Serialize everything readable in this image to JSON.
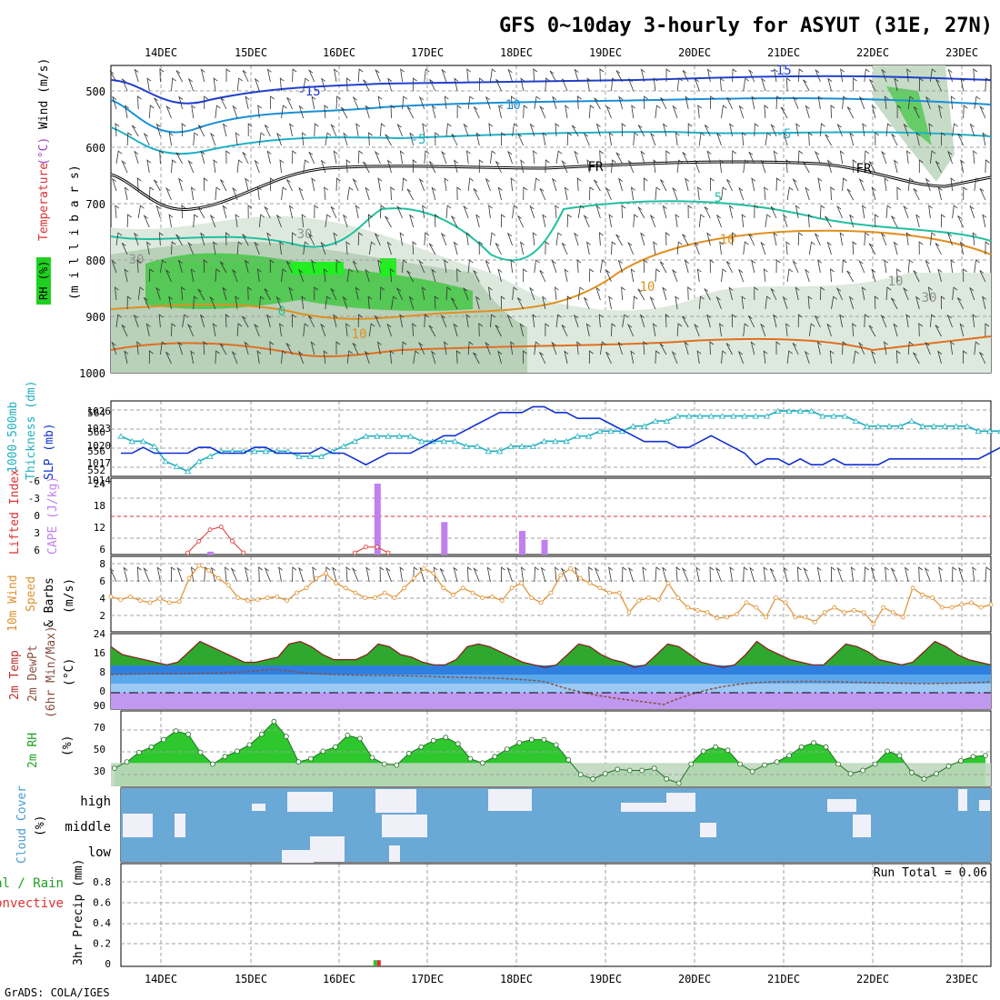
{
  "title": "GFS 0~10day 3-hourly for ASYUT (31E, 27N)",
  "credit": "GrADS: COLA/IGES",
  "days": [
    "14DEC",
    "15DEC",
    "16DEC",
    "17DEC",
    "18DEC",
    "19DEC",
    "20DEC",
    "21DEC",
    "22DEC",
    "23DEC"
  ],
  "colors": {
    "grid": "#a0a0a0",
    "slp": "#1030d0",
    "thick": "#20b0c0",
    "cape": "#c080f0",
    "li": "#e03030",
    "wind": "#e09030",
    "temp_fill": "#20c020",
    "rh_fill": "#20d020",
    "cloud": "#6aa8d6",
    "cloud_gap": "#f0f0f8"
  },
  "panels": {
    "upper": {
      "ylabel_a": "RH (%)",
      "ylabel_b": "Temperature",
      "ylabel_c": "(°C)",
      "ylabel_d": "Wind (m/s)",
      "ylabel_e": "(m i l l i b a r s)",
      "ticks": [
        "500",
        "600",
        "700",
        "800",
        "900",
        "1000"
      ],
      "labels": [
        "-15",
        "-15",
        "-10",
        "-5",
        "-5",
        "FR",
        "FR",
        "5",
        "10",
        "10",
        "10",
        "30",
        "30",
        "30",
        "0",
        "10"
      ]
    },
    "pressure": {
      "ylabel_left": "1000-500mb",
      "ylabel_left2": "Thickness (dm)",
      "ylabel_right": "SLP (mb)",
      "left_ticks": [
        "564",
        "560",
        "556",
        "552"
      ],
      "right_ticks": [
        "1026",
        "1023",
        "1020",
        "1017",
        "1014"
      ]
    },
    "cape": {
      "ylabel_a": "Lifted Index",
      "ylabel_b": "CAPE (J/kg)",
      "left_ticks": [
        "-6",
        "-3",
        "0",
        "3",
        "6"
      ],
      "right_ticks": [
        "24",
        "18",
        "12",
        "6"
      ]
    },
    "wind10": {
      "ylabel_a": "10m Wind",
      "ylabel_b": "Speed",
      "ylabel_c": "& Barbs",
      "ylabel_d": "(m/s)",
      "ticks": [
        "8",
        "6",
        "4",
        "2"
      ]
    },
    "temp2m": {
      "ylabel_a": "2m Temp",
      "ylabel_b": "2m DewPt",
      "ylabel_c": "(6hr Min/Max)",
      "ylabel_d": "(°C)",
      "ticks": [
        "24",
        "16",
        "8",
        "0"
      ]
    },
    "rh2m": {
      "ylabel_a": "2m RH",
      "ylabel_b": "(%)",
      "ticks": [
        "90",
        "70",
        "50",
        "30"
      ]
    },
    "cloud": {
      "ylabel_a": "Cloud Cover",
      "ylabel_b": "(%)",
      "levels": [
        "high",
        "middle",
        "low"
      ]
    },
    "precip": {
      "ylabel_a": "Total / Rain",
      "ylabel_b": "Convective",
      "ylabel_c": "3hr Precip (mm)",
      "ticks": [
        "0.8",
        "0.6",
        "0.4",
        "0.2",
        "0"
      ],
      "run_total": "Run Total = 0.06"
    }
  },
  "chart_data": [
    {
      "type": "line",
      "name": "SLP",
      "unit": "mb",
      "ylim": [
        1014,
        1027
      ],
      "values": [
        1018,
        1018,
        1019,
        1018,
        1018,
        1018,
        1018,
        1019,
        1019,
        1018,
        1018,
        1018,
        1019,
        1019,
        1018,
        1018,
        1018,
        1018,
        1019,
        1018,
        1018,
        1017,
        1016,
        1017,
        1018,
        1018,
        1018,
        1019,
        1020,
        1021,
        1021,
        1022,
        1023,
        1024,
        1025,
        1025,
        1025,
        1026,
        1026,
        1025,
        1025,
        1024,
        1024,
        1024,
        1023,
        1022,
        1021,
        1020,
        1020,
        1020,
        1019,
        1019,
        1020,
        1021,
        1020,
        1019,
        1018,
        1016,
        1017,
        1017,
        1016,
        1017,
        1016,
        1016,
        1017,
        1016,
        1016,
        1016,
        1016,
        1017,
        1017,
        1017,
        1017,
        1017,
        1017,
        1017,
        1017,
        1017,
        1018,
        1019
      ]
    },
    {
      "type": "line",
      "name": "Thickness",
      "unit": "dm",
      "ylim": [
        551,
        566
      ],
      "values": [
        559,
        558,
        558,
        557,
        554,
        553,
        552,
        554,
        555,
        556,
        556,
        556,
        556,
        556,
        556,
        556,
        555,
        555,
        555,
        556,
        557,
        558,
        559,
        559,
        559,
        559,
        559,
        558,
        558,
        558,
        558,
        557,
        557,
        556,
        556,
        557,
        557,
        557,
        558,
        558,
        558,
        559,
        559,
        560,
        560,
        560,
        561,
        561,
        562,
        562,
        563,
        563,
        563,
        563,
        563,
        563,
        563,
        563,
        563,
        564,
        564,
        564,
        564,
        563,
        563,
        563,
        562,
        561,
        561,
        561,
        561,
        562,
        561,
        561,
        561,
        561,
        561,
        560,
        560,
        560
      ]
    },
    {
      "type": "bar",
      "name": "CAPE",
      "unit": "J/kg",
      "ylim": [
        0,
        24
      ],
      "bars": [
        [
          8,
          1
        ],
        [
          23,
          24
        ],
        [
          29,
          11
        ],
        [
          36,
          8
        ],
        [
          38,
          5
        ]
      ]
    },
    {
      "type": "line",
      "name": "Lifted Index",
      "unit": "",
      "ylim": [
        6,
        -6
      ],
      "values_at": [
        [
          6,
          6
        ],
        [
          7,
          4
        ],
        [
          8,
          2
        ],
        [
          9,
          1.5
        ],
        [
          10,
          4
        ],
        [
          11,
          6
        ],
        [
          21,
          6
        ],
        [
          22,
          5
        ],
        [
          23,
          5
        ],
        [
          24,
          6
        ]
      ]
    },
    {
      "type": "line",
      "name": "10m Wind Speed",
      "unit": "m/s",
      "ylim": [
        1,
        8
      ],
      "values": [
        4.6,
        4.3,
        4.6,
        4.2,
        4.0,
        4.4,
        4.0,
        4.1,
        6.5,
        7.8,
        7.3,
        6.5,
        5.8,
        4.5,
        4.2,
        4.3,
        4.5,
        4.6,
        4.2,
        5.0,
        5.5,
        6.5,
        7.0,
        6.0,
        5.5,
        5.0,
        4.5,
        4.5,
        5.0,
        4.5,
        5.5,
        6.5,
        7.5,
        7.0,
        5.5,
        4.8,
        5.5,
        5.0,
        4.5,
        4.6,
        4.2,
        5.5,
        6.0,
        4.5,
        4.0,
        5.0,
        6.8,
        7.5,
        6.5,
        6.0,
        5.5,
        5.0,
        5.0,
        3.0,
        4.2,
        4.5,
        4.3,
        6.0,
        4.5,
        3.5,
        3.2,
        3.0,
        2.4,
        2.5,
        2.8,
        4.0,
        3.5,
        2.5,
        4.5,
        4.0,
        2.5,
        2.5,
        2.0,
        3.0,
        3.5,
        3.0,
        3.2,
        3.0,
        1.8,
        3.5,
        3.0,
        2.5,
        5.5,
        4.8,
        4.5,
        3.5,
        3.5,
        3.8,
        4.0,
        3.5,
        3.8
      ]
    },
    {
      "type": "line",
      "name": "2m Temp",
      "unit": "°C",
      "ylim": [
        -5,
        24
      ],
      "values": [
        19,
        16,
        15,
        14,
        13,
        12,
        13,
        17,
        21,
        19,
        17,
        15,
        13,
        13,
        14,
        15,
        20,
        21,
        19,
        16,
        14,
        14,
        14,
        16,
        20,
        19,
        16,
        15,
        13,
        12,
        12,
        14,
        19,
        20,
        19,
        17,
        15,
        13,
        12,
        11,
        12,
        16,
        20,
        19,
        16,
        14,
        13,
        11,
        12,
        16,
        20,
        19,
        16,
        13,
        12,
        11,
        12,
        16,
        21,
        18,
        16,
        14,
        13,
        12,
        12,
        16,
        20,
        19,
        17,
        14,
        13,
        12,
        13,
        17,
        21,
        19,
        16,
        14,
        13,
        12
      ]
    },
    {
      "type": "area",
      "name": "2m RH",
      "unit": "%",
      "ylim": [
        23,
        94
      ],
      "values": [
        40,
        46,
        55,
        60,
        67,
        75,
        72,
        55,
        44,
        51,
        56,
        62,
        72,
        84,
        70,
        46,
        49,
        56,
        60,
        71,
        68,
        50,
        44,
        43,
        54,
        60,
        66,
        69,
        63,
        49,
        45,
        51,
        58,
        64,
        67,
        67,
        62,
        48,
        34,
        30,
        35,
        39,
        38,
        38,
        40,
        30,
        26,
        44,
        56,
        60,
        57,
        44,
        37,
        43,
        46,
        52,
        60,
        64,
        60,
        44,
        35,
        38,
        44,
        56,
        52,
        36,
        30,
        35,
        42,
        47,
        51,
        52
      ]
    },
    {
      "type": "bar",
      "name": "3hr Precip",
      "unit": "mm",
      "ylim": [
        0,
        1
      ],
      "bars": [
        [
          23,
          0.06
        ]
      ]
    }
  ]
}
